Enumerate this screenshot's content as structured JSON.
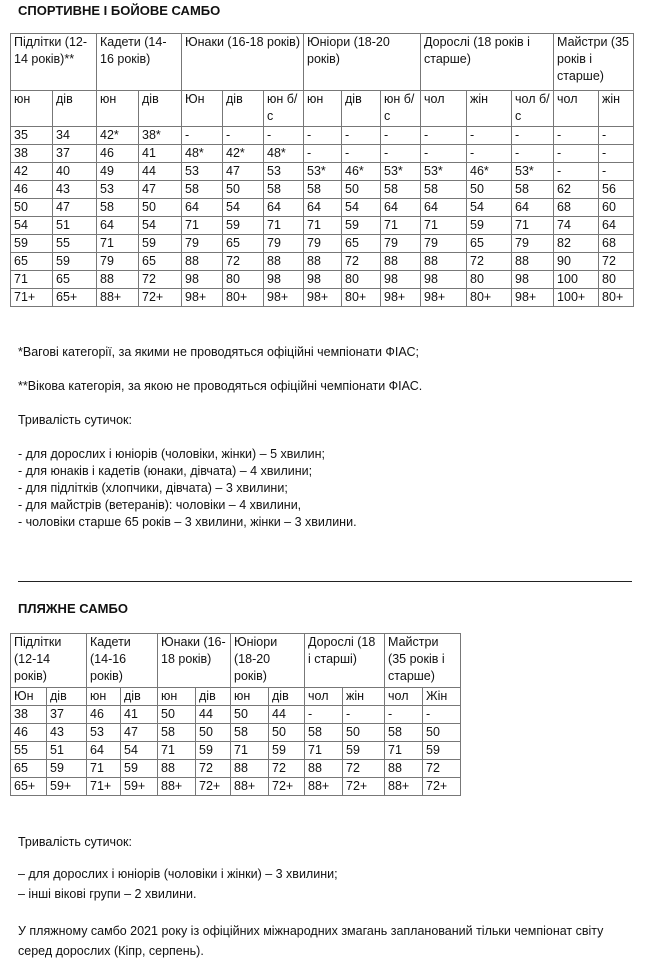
{
  "section1": {
    "title": "СПОРТИВНЕ І БОЙОВЕ САМБО",
    "groups": [
      "Підлітки (12-14 років)**",
      "Кадети (14-16 років)",
      "Юнаки (16-18 років)",
      "Юніори (18-20 років)",
      "Дорослі (18 років і старше)",
      "Майстри (35 років і старше)"
    ],
    "group_spans": [
      2,
      2,
      3,
      3,
      3,
      2
    ],
    "subheaders": [
      "юн",
      "дів",
      "юн",
      "дів",
      "Юн",
      "дів",
      "юн б/с",
      "юн",
      "дів",
      "юн б/с",
      "чол",
      "жін",
      "чол б/с",
      "чол",
      "жін"
    ],
    "rows": [
      [
        "35",
        "34",
        "42*",
        "38*",
        "-",
        "-",
        "-",
        "-",
        "-",
        "-",
        "-",
        "-",
        "-",
        "-",
        "-"
      ],
      [
        "38",
        "37",
        "46",
        "41",
        "48*",
        "42*",
        "48*",
        "-",
        "-",
        "-",
        "-",
        "-",
        "-",
        "-",
        "-"
      ],
      [
        "42",
        "40",
        "49",
        "44",
        "53",
        "47",
        "53",
        "53*",
        "46*",
        "53*",
        "53*",
        "46*",
        "53*",
        "-",
        "-"
      ],
      [
        "46",
        "43",
        "53",
        "47",
        "58",
        "50",
        "58",
        "58",
        "50",
        "58",
        "58",
        "50",
        "58",
        "62",
        "56"
      ],
      [
        "50",
        "47",
        "58",
        "50",
        "64",
        "54",
        "64",
        "64",
        "54",
        "64",
        "64",
        "54",
        "64",
        "68",
        "60"
      ],
      [
        "54",
        "51",
        "64",
        "54",
        "71",
        "59",
        "71",
        "71",
        "59",
        "71",
        "71",
        "59",
        "71",
        "74",
        "64"
      ],
      [
        "59",
        "55",
        "71",
        "59",
        "79",
        "65",
        "79",
        "79",
        "65",
        "79",
        "79",
        "65",
        "79",
        "82",
        "68"
      ],
      [
        "65",
        "59",
        "79",
        "65",
        "88",
        "72",
        "88",
        "88",
        "72",
        "88",
        "88",
        "72",
        "88",
        "90",
        "72"
      ],
      [
        "71",
        "65",
        "88",
        "72",
        "98",
        "80",
        "98",
        "98",
        "80",
        "98",
        "98",
        "80",
        "98",
        "100",
        "80"
      ],
      [
        "71+",
        "65+",
        "88+",
        "72+",
        "98+",
        "80+",
        "98+",
        "98+",
        "80+",
        "98+",
        "98+",
        "80+",
        "98+",
        "100+",
        "80+"
      ]
    ],
    "footnote1": "*Вагові категорії, за якими не проводяться офіційні чемпіонати ФІАС;",
    "footnote2": "**Вікова категорія, за якою не проводяться офіційні чемпіонати ФІАС.",
    "duration_title": "Тривалість сутичок:",
    "duration_items": [
      "- для дорослих і юніорів (чоловіки, жінки) – 5 хвилин;",
      "- для юнаків і кадетів (юнаки, дівчата) – 4 хвилини;",
      "- для підлітків (хлопчики, дівчата) – 3 хвилини;",
      "- для майстрів (ветеранів): чоловіки – 4 хвилини,",
      "- чоловіки старше 65 років – 3 хвилини, жінки – 3 хвилини."
    ]
  },
  "section2": {
    "title": "ПЛЯЖНЕ САМБО",
    "groups": [
      "Підлітки (12-14 років)",
      "Кадети (14-16 років)",
      "Юнаки (16-18 років)",
      "Юніори (18-20 років)",
      "Дорослі (18 і старші)",
      "Майстри (35 років і старше)"
    ],
    "group_spans": [
      2,
      2,
      2,
      2,
      2,
      2
    ],
    "subheaders": [
      "Юн",
      "дів",
      "юн",
      "дів",
      "юн",
      "дів",
      "юн",
      "дів",
      "чол",
      "жін",
      "чол",
      "Жін"
    ],
    "rows": [
      [
        "38",
        "37",
        "46",
        "41",
        "50",
        "44",
        "50",
        "44",
        "-",
        "-",
        "-",
        "-"
      ],
      [
        "46",
        "43",
        "53",
        "47",
        "58",
        "50",
        "58",
        "50",
        "58",
        "50",
        "58",
        "50"
      ],
      [
        "55",
        "51",
        "64",
        "54",
        "71",
        "59",
        "71",
        "59",
        "71",
        "59",
        "71",
        "59"
      ],
      [
        "65",
        "59",
        "71",
        "59",
        "88",
        "72",
        "88",
        "72",
        "88",
        "72",
        "88",
        "72"
      ],
      [
        "65+",
        "59+",
        "71+",
        "59+",
        "88+",
        "72+",
        "88+",
        "72+",
        "88+",
        "72+",
        "88+",
        "72+"
      ]
    ],
    "duration_title": "Тривалість сутичок:",
    "duration_items": [
      "– для дорослих і юніорів (чоловіки і жінки) – 3 хвилини;",
      "– інші вікові групи – 2 хвилини."
    ],
    "note": "У пляжному самбо 2021 року із офіційних міжнародних змагань запланований тільки чемпіонат світу серед дорослих (Кіпр, серпень)."
  }
}
